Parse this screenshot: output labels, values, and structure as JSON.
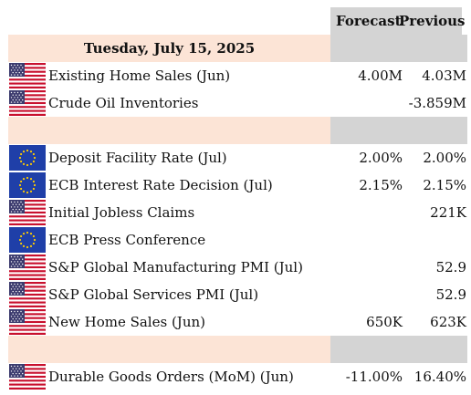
{
  "header": {
    "forecast_label": "Forecast",
    "previous_label": "Previous"
  },
  "colors": {
    "date_band": "#fce4d6",
    "value_band": "#d4d4d4",
    "eu_blue": "#1f3fa8",
    "us_red": "#c8102e"
  },
  "date_row": {
    "label": "Tuesday, July 15, 2025"
  },
  "events": [
    {
      "flag": "us-flag-icon",
      "name": "Existing Home Sales (Jun)",
      "forecast": "4.00M",
      "previous": "4.03M"
    },
    {
      "flag": "us-flag-icon",
      "name": "Crude Oil Inventories",
      "forecast": "",
      "previous": "-3.859M"
    },
    {
      "flag": "eu-flag-icon",
      "name": "Deposit Facility Rate (Jul)",
      "forecast": "2.00%",
      "previous": "2.00%"
    },
    {
      "flag": "eu-flag-icon",
      "name": "ECB Interest Rate Decision (Jul)",
      "forecast": "2.15%",
      "previous": "2.15%"
    },
    {
      "flag": "us-flag-icon",
      "name": "Initial Jobless Claims",
      "forecast": "",
      "previous": "221K"
    },
    {
      "flag": "eu-flag-icon",
      "name": "ECB Press Conference",
      "forecast": "",
      "previous": ""
    },
    {
      "flag": "us-flag-icon",
      "name": "S&P Global Manufacturing PMI (Jul)",
      "forecast": "",
      "previous": "52.9"
    },
    {
      "flag": "us-flag-icon",
      "name": "S&P Global Services PMI (Jul)",
      "forecast": "",
      "previous": "52.9"
    },
    {
      "flag": "us-flag-icon",
      "name": "New Home Sales (Jun)",
      "forecast": "650K",
      "previous": "623K"
    },
    {
      "flag": "us-flag-icon",
      "name": "Durable Goods Orders (MoM) (Jun)",
      "forecast": "-11.00%",
      "previous": "16.40%"
    }
  ]
}
